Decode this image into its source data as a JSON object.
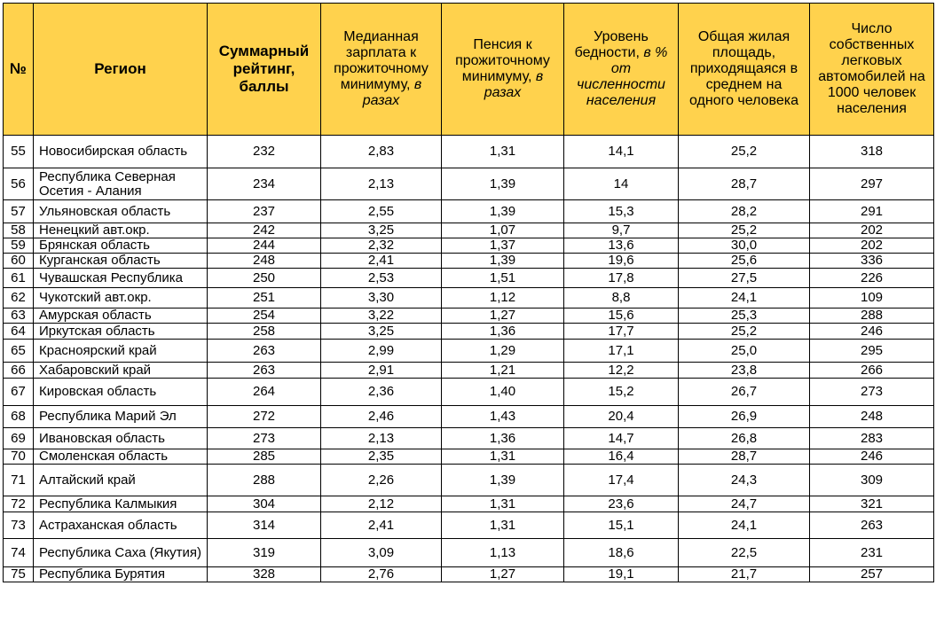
{
  "headers": {
    "num": "№",
    "region": "Регион",
    "rating": "Суммарный рейтинг, баллы",
    "salary_main": "Медианная зарплата к прожиточному минимуму, ",
    "salary_unit": "в разах",
    "pension_main": "Пенсия к прожиточному минимуму, ",
    "pension_unit": "в разах",
    "poverty_main": "Уровень бедности, ",
    "poverty_unit": "в % от численности населения",
    "housing": "Общая жилая площадь, приходящаяся в среднем на одного человека",
    "cars": "Число собственных легковых автомобилей на 1000 человек населения"
  },
  "rows": [
    {
      "num": "55",
      "region": "Новосибирская область",
      "rating": "232",
      "salary": "2,83",
      "pension": "1,31",
      "poverty": "14,1",
      "housing": "25,2",
      "cars": "318"
    },
    {
      "num": "56",
      "region": "Республика Северная Осетия - Алания",
      "rating": "234",
      "salary": "2,13",
      "pension": "1,39",
      "poverty": "14",
      "housing": "28,7",
      "cars": "297"
    },
    {
      "num": "57",
      "region": "Ульяновская область",
      "rating": "237",
      "salary": "2,55",
      "pension": "1,39",
      "poverty": "15,3",
      "housing": "28,2",
      "cars": "291"
    },
    {
      "num": "58",
      "region": "Ненецкий авт.окр.",
      "rating": "242",
      "salary": "3,25",
      "pension": "1,07",
      "poverty": "9,7",
      "housing": "25,2",
      "cars": "202"
    },
    {
      "num": "59",
      "region": "Брянская область",
      "rating": "244",
      "salary": "2,32",
      "pension": "1,37",
      "poverty": "13,6",
      "housing": "30,0",
      "cars": "202"
    },
    {
      "num": "60",
      "region": "Курганская область",
      "rating": "248",
      "salary": "2,41",
      "pension": "1,39",
      "poverty": "19,6",
      "housing": "25,6",
      "cars": "336"
    },
    {
      "num": "61",
      "region": "Чувашская Республика",
      "rating": "250",
      "salary": "2,53",
      "pension": "1,51",
      "poverty": "17,8",
      "housing": "27,5",
      "cars": "226"
    },
    {
      "num": "62",
      "region": "Чукотский авт.окр.",
      "rating": "251",
      "salary": "3,30",
      "pension": "1,12",
      "poverty": "8,8",
      "housing": "24,1",
      "cars": "109"
    },
    {
      "num": "63",
      "region": "Амурская область",
      "rating": "254",
      "salary": "3,22",
      "pension": "1,27",
      "poverty": "15,6",
      "housing": "25,3",
      "cars": "288"
    },
    {
      "num": "64",
      "region": "Иркутская область",
      "rating": "258",
      "salary": "3,25",
      "pension": "1,36",
      "poverty": "17,7",
      "housing": "25,2",
      "cars": "246"
    },
    {
      "num": "65",
      "region": "Красноярский край",
      "rating": "263",
      "salary": "2,99",
      "pension": "1,29",
      "poverty": "17,1",
      "housing": "25,0",
      "cars": "295"
    },
    {
      "num": "66",
      "region": "Хабаровский край",
      "rating": "263",
      "salary": "2,91",
      "pension": "1,21",
      "poverty": "12,2",
      "housing": "23,8",
      "cars": "266"
    },
    {
      "num": "67",
      "region": "Кировская область",
      "rating": "264",
      "salary": "2,36",
      "pension": "1,40",
      "poverty": "15,2",
      "housing": "26,7",
      "cars": "273"
    },
    {
      "num": "68",
      "region": "Республика Марий Эл",
      "rating": "272",
      "salary": "2,46",
      "pension": "1,43",
      "poverty": "20,4",
      "housing": "26,9",
      "cars": "248"
    },
    {
      "num": "69",
      "region": "Ивановская область",
      "rating": "273",
      "salary": "2,13",
      "pension": "1,36",
      "poverty": "14,7",
      "housing": "26,8",
      "cars": "283"
    },
    {
      "num": "70",
      "region": "Смоленская область",
      "rating": "285",
      "salary": "2,35",
      "pension": "1,31",
      "poverty": "16,4",
      "housing": "28,7",
      "cars": "246"
    },
    {
      "num": "71",
      "region": "Алтайский край",
      "rating": "288",
      "salary": "2,26",
      "pension": "1,39",
      "poverty": "17,4",
      "housing": "24,3",
      "cars": "309"
    },
    {
      "num": "72",
      "region": "Республика Калмыкия",
      "rating": "304",
      "salary": "2,12",
      "pension": "1,31",
      "poverty": "23,6",
      "housing": "24,7",
      "cars": "321"
    },
    {
      "num": "73",
      "region": "Астраханская область",
      "rating": "314",
      "salary": "2,41",
      "pension": "1,31",
      "poverty": "15,1",
      "housing": "24,1",
      "cars": "263"
    },
    {
      "num": "74",
      "region": "Республика Саха (Якутия)",
      "rating": "319",
      "salary": "3,09",
      "pension": "1,13",
      "poverty": "18,6",
      "housing": "22,5",
      "cars": "231"
    },
    {
      "num": "75",
      "region": "Республика Бурятия",
      "rating": "328",
      "salary": "2,76",
      "pension": "1,27",
      "poverty": "19,1",
      "housing": "21,7",
      "cars": "257"
    }
  ]
}
